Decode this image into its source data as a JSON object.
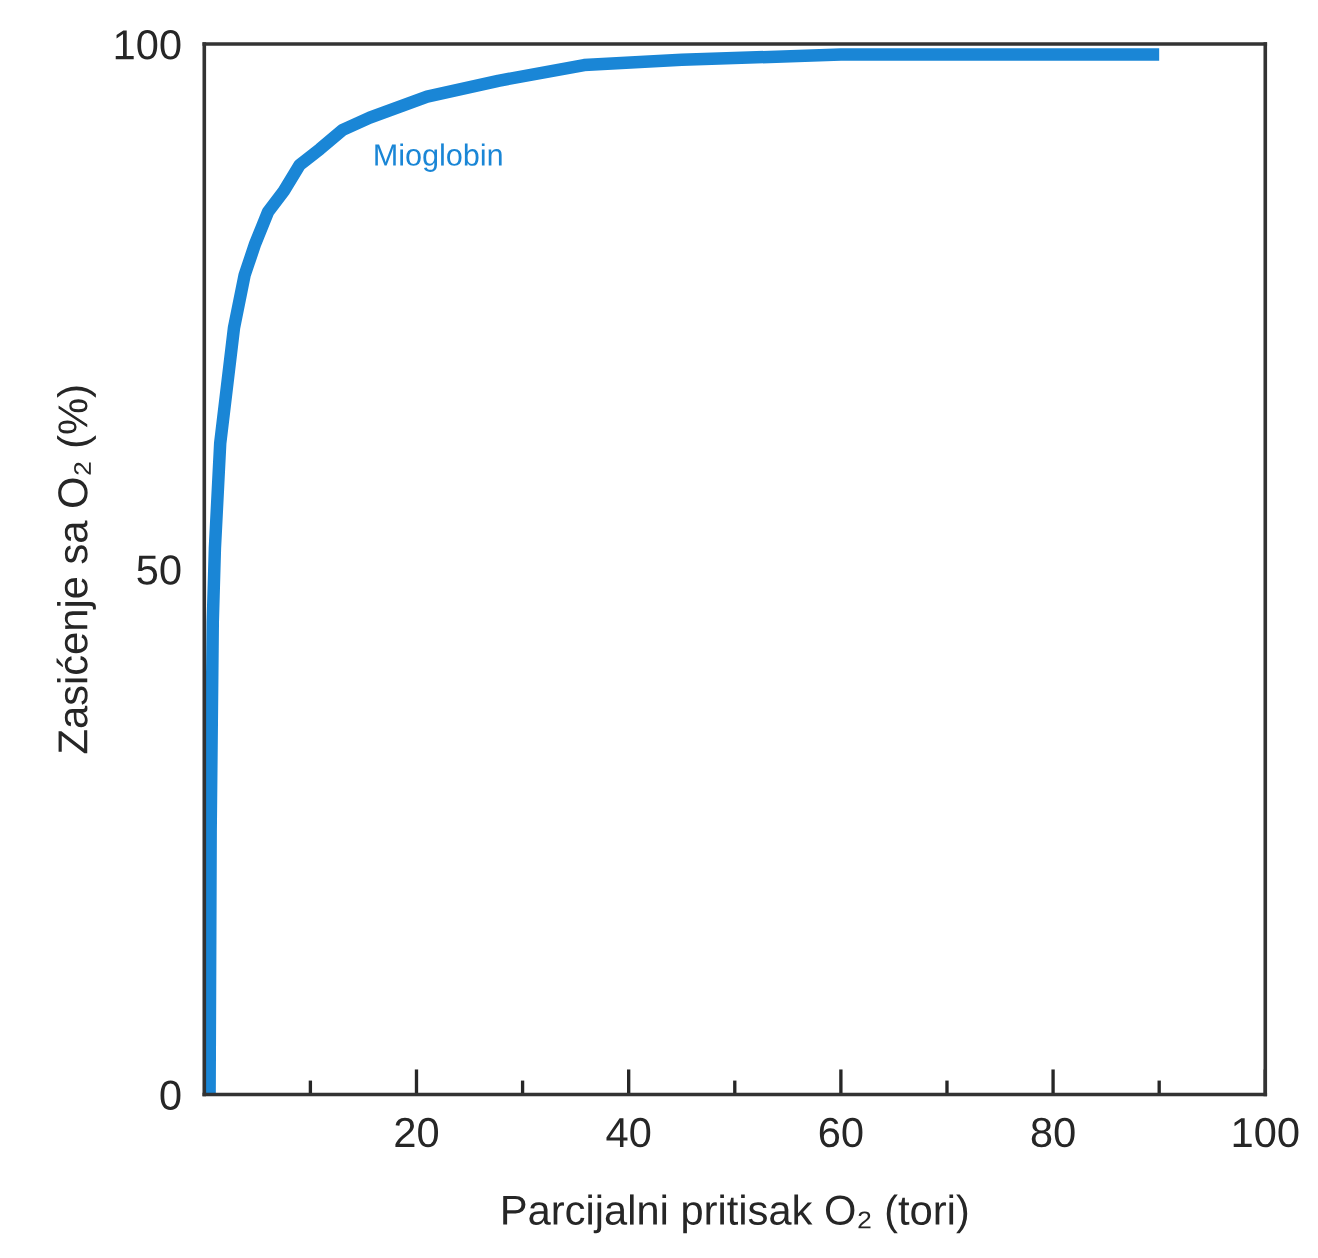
{
  "chart_data": {
    "type": "line",
    "xlabel": "Parcijalni pritisak O₂ (tori)",
    "ylabel": "Zasićenje sa O₂ (%)",
    "xlim": [
      0,
      100
    ],
    "ylim": [
      0,
      100
    ],
    "xticks": [
      {
        "value": 10,
        "label": null
      },
      20,
      {
        "value": 30,
        "label": null
      },
      40,
      {
        "value": 50,
        "label": null
      },
      60,
      {
        "value": 70,
        "label": null
      },
      80,
      {
        "value": 90,
        "label": null
      },
      100
    ],
    "yticks": [
      0,
      50,
      100
    ],
    "grid": false,
    "marker": "none",
    "line_style": "solid",
    "series": [
      {
        "name": "Mioglobin",
        "color": "#1a86d6",
        "x": [
          0.5,
          0.6,
          0.8,
          1,
          1.5,
          2.8,
          3.8,
          4.8,
          6,
          7.5,
          9,
          10.9,
          13,
          15.6,
          21,
          27.7,
          35.8,
          45,
          60,
          75,
          90
        ],
        "values": [
          0,
          25,
          45,
          52,
          62,
          73,
          78,
          81,
          84,
          86,
          88.5,
          90,
          91.8,
          93,
          95,
          96.5,
          98,
          98.5,
          99,
          99,
          99
        ]
      }
    ]
  }
}
